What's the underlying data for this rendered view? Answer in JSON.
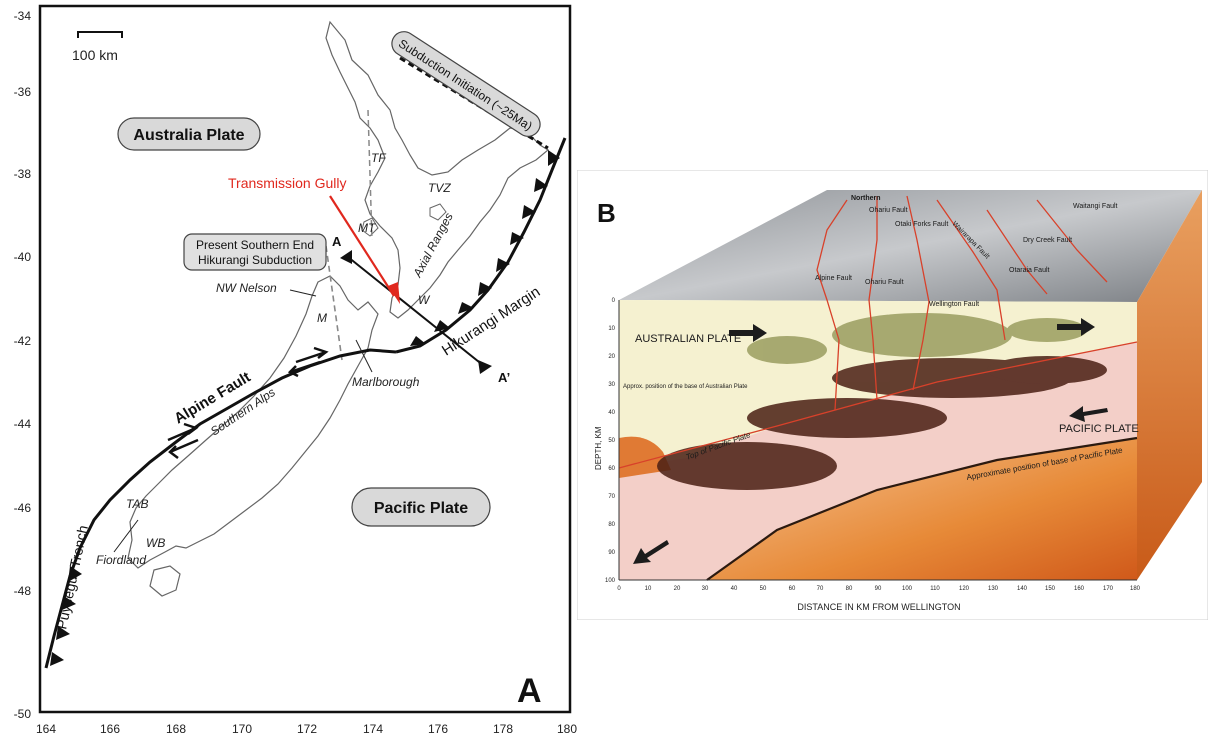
{
  "panel_a": {
    "label": "A",
    "y_ticks": [
      "-34",
      "-36",
      "-38",
      "-40",
      "-42",
      "-44",
      "-46",
      "-48",
      "-50"
    ],
    "x_ticks": [
      "164",
      "166",
      "168",
      "170",
      "172",
      "174",
      "176",
      "178",
      "180"
    ],
    "scale_label": "100 km",
    "australia_plate": "Australia Plate",
    "pacific_plate": "Pacific Plate",
    "subduction_initiation": "Subduction Initiation (~25Ma)",
    "transmission_gully": "Transmission Gully",
    "southern_end_line1": "Present Southern End",
    "southern_end_line2": "Hikurangi Subduction",
    "tf": "TF",
    "tvz": "TVZ",
    "mt": "MT",
    "axial_ranges": "Axial Ranges",
    "w": "W",
    "nw_nelson": "NW Nelson",
    "m": "M",
    "marlborough": "Marlborough",
    "hikurangi_margin": "Hikurangi Margin",
    "alpine_fault": "Alpine Fault",
    "southern_alps": "Southern Alps",
    "puysegur_trench": "Puysegur Trench",
    "tab": "TAB",
    "wb": "WB",
    "fiordland": "Fiordland",
    "point_a": "A",
    "point_a_prime": "A’",
    "accent_red": "#e0281e"
  },
  "panel_b": {
    "label": "B",
    "northern": "Northern",
    "ohariu_fault_top": "Ohariu Fault",
    "otaki_forks_fault": "Otaki Forks Fault",
    "wairarapa_fault": "Wairarapa Fault",
    "waitangi_fault": "Waitangi Fault",
    "dry_creek_fault": "Dry Creek Fault",
    "alpine_fault": "Alpine Fault",
    "ohariu_fault_mid": "Ohariu Fault",
    "otaraia_fault": "Otaraia Fault",
    "wellington_fault": "Wellington Fault",
    "australian_plate": "AUSTRALIAN PLATE",
    "pacific_plate": "PACIFIC PLATE",
    "approx_base_australian": "Approx. position of the base of Australian Plate",
    "top_of_pacific": "Top of Pacific Plate",
    "approx_base_pacific": "Approximate position of base of Pacific Plate",
    "depth_label": "DEPTH, KM",
    "x_axis_label": "DISTANCE IN KM FROM WELLINGTON",
    "depth_ticks": [
      "0",
      "10",
      "20",
      "30",
      "40",
      "50",
      "60",
      "70",
      "80",
      "90",
      "100"
    ],
    "dist_ticks": [
      "0",
      "10",
      "20",
      "30",
      "40",
      "50",
      "60",
      "70",
      "80",
      "90",
      "100",
      "110",
      "120",
      "130",
      "140",
      "150",
      "160",
      "170",
      "180"
    ]
  }
}
